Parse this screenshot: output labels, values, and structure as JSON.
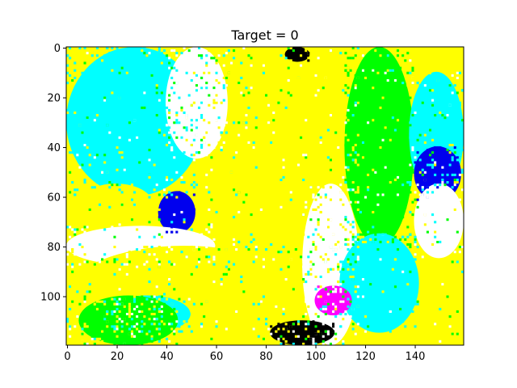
{
  "chart_data": {
    "type": "heatmap",
    "title": "Target = 0",
    "xlabel": "",
    "ylabel": "",
    "image_width": 160,
    "image_height": 120,
    "xlim": [
      -0.5,
      159.5
    ],
    "ylim": [
      119.5,
      -0.5
    ],
    "x_ticks": [
      0,
      20,
      40,
      60,
      80,
      100,
      120,
      140
    ],
    "y_ticks": [
      0,
      20,
      40,
      60,
      80,
      100
    ],
    "grid": false,
    "legend": "none",
    "palette": {
      "yellow": "#ffff00",
      "cyan": "#00ffff",
      "white": "#ffffff",
      "blue": "#0000ee",
      "green": "#00ff00",
      "magenta": "#ff00ff",
      "black": "#000000",
      "red": "#ff0000"
    },
    "regions": [
      {
        "label": "cyan upper-left",
        "color": "cyan",
        "x": [
          0,
          55
        ],
        "y": [
          0,
          60
        ]
      },
      {
        "label": "yellow central band",
        "color": "yellow",
        "x": [
          55,
          118
        ],
        "y": [
          0,
          95
        ]
      },
      {
        "label": "white diagonal streak",
        "color": "white",
        "x": [
          40,
          65
        ],
        "y": [
          0,
          45
        ]
      },
      {
        "label": "yellow left blob",
        "color": "yellow",
        "x": [
          5,
          35
        ],
        "y": [
          55,
          72
        ]
      },
      {
        "label": "blue blob left",
        "color": "blue",
        "x": [
          37,
          52
        ],
        "y": [
          58,
          75
        ]
      },
      {
        "label": "white lower-left",
        "color": "white",
        "x": [
          0,
          60
        ],
        "y": [
          72,
          88
        ]
      },
      {
        "label": "yellow lower-left",
        "color": "yellow",
        "x": [
          0,
          95
        ],
        "y": [
          80,
          120
        ]
      },
      {
        "label": "cyan lower-left",
        "color": "cyan",
        "x": [
          15,
          50
        ],
        "y": [
          100,
          115
        ]
      },
      {
        "label": "green lower-left",
        "color": "green",
        "x": [
          5,
          45
        ],
        "y": [
          100,
          120
        ]
      },
      {
        "label": "white center-right",
        "color": "white",
        "x": [
          95,
          118
        ],
        "y": [
          55,
          120
        ]
      },
      {
        "label": "green/yellow dithered column",
        "color": "green",
        "x": [
          112,
          140
        ],
        "y": [
          0,
          80
        ]
      },
      {
        "label": "cyan dithered lower column",
        "color": "cyan",
        "x": [
          110,
          142
        ],
        "y": [
          75,
          115
        ]
      },
      {
        "label": "cyan upper-right",
        "color": "cyan",
        "x": [
          138,
          160
        ],
        "y": [
          10,
          60
        ]
      },
      {
        "label": "blue blob right",
        "color": "blue",
        "x": [
          140,
          159
        ],
        "y": [
          40,
          62
        ]
      },
      {
        "label": "white right edge",
        "color": "white",
        "x": [
          140,
          160
        ],
        "y": [
          55,
          85
        ]
      },
      {
        "label": "yellow right edge",
        "color": "yellow",
        "x": [
          148,
          160
        ],
        "y": [
          85,
          120
        ]
      },
      {
        "label": "black/magenta noise top",
        "color": "black",
        "x": [
          88,
          98
        ],
        "y": [
          0,
          6
        ]
      },
      {
        "label": "black/magenta noise bottom",
        "color": "black",
        "x": [
          82,
          108
        ],
        "y": [
          110,
          120
        ]
      },
      {
        "label": "magenta specks",
        "color": "magenta",
        "x": [
          100,
          115
        ],
        "y": [
          96,
          108
        ]
      }
    ]
  }
}
